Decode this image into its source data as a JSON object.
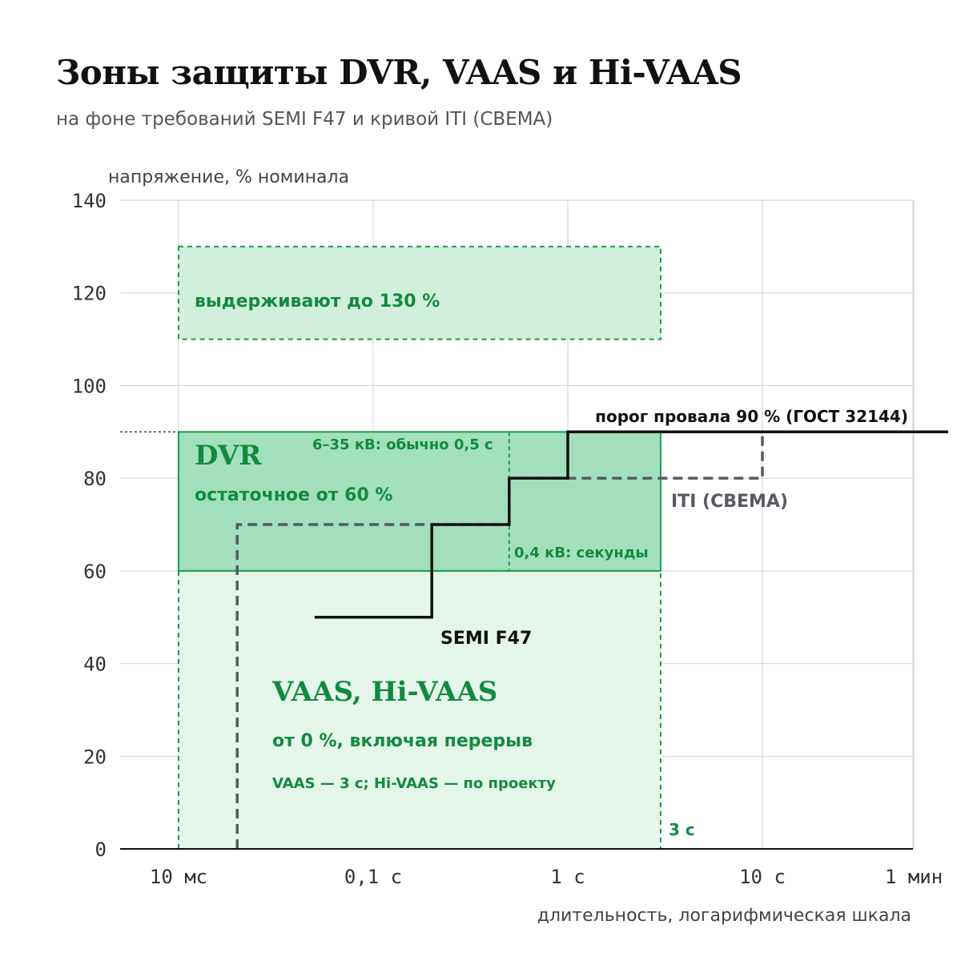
{
  "title": "Зоны защиты DVR, VAAS и Hi-VAAS",
  "subtitle": "на фоне требований SEMI F47 и кривой ITI (CBEMA)",
  "colors": {
    "green": "#1a9e4b",
    "green_text": "#138a3e",
    "zone_light": "#e4f5ea",
    "zone_mid": "#d2efdd",
    "zone_dark": "#a2e0bd",
    "semi": "#111111",
    "iti": "#555a63",
    "grid": "#d0d0d0"
  },
  "chart_data": {
    "type": "step",
    "ylabel": "напряжение, % номинала",
    "xlabel": "длительность, логарифмическая шкала",
    "x_scale": "log",
    "xlim_s": [
      0.0035,
      90
    ],
    "ylim": [
      0,
      140
    ],
    "y_ticks": [
      0,
      20,
      40,
      60,
      80,
      100,
      120,
      140
    ],
    "x_ticks": [
      {
        "value_s": 0.01,
        "label": "10 мс"
      },
      {
        "value_s": 0.1,
        "label": "0,1 с"
      },
      {
        "value_s": 1,
        "label": "1 с"
      },
      {
        "value_s": 10,
        "label": "10 с"
      },
      {
        "value_s": 60,
        "label": "1 мин"
      }
    ],
    "grid": true,
    "zones": [
      {
        "name": "overvoltage",
        "x_s": [
          0.01,
          3
        ],
        "y": [
          110,
          130
        ],
        "label": "выдерживают до 130 %"
      },
      {
        "name": "DVR",
        "x_s": [
          0.01,
          3
        ],
        "y": [
          60,
          90
        ],
        "label": "DVR",
        "sublabel": "остаточное от 60 %"
      },
      {
        "name": "VAAS, Hi-VAAS",
        "x_s": [
          0.01,
          3
        ],
        "y": [
          0,
          60
        ],
        "label": "VAAS, Hi-VAAS",
        "sublabel": "от 0 %, включая перерыв",
        "note": "VAAS — 3 с; Hi-VAAS — по проекту",
        "end_label": "3 с"
      }
    ],
    "dvr_split": {
      "x_s": 0.5,
      "label_top": "6–35 кВ: обычно 0,5 с",
      "label_bottom": "0,4 кВ: секунды"
    },
    "series": [
      {
        "name": "SEMI F47",
        "style": "solid",
        "points": [
          [
            0.05,
            50
          ],
          [
            0.2,
            50
          ],
          [
            0.2,
            70
          ],
          [
            0.5,
            70
          ],
          [
            0.5,
            80
          ],
          [
            1,
            80
          ],
          [
            1,
            90
          ],
          [
            90,
            90
          ]
        ]
      },
      {
        "name": "ITI (CBEMA)",
        "style": "dashed",
        "points": [
          [
            0.02,
            0
          ],
          [
            0.02,
            70
          ],
          [
            0.5,
            70
          ],
          [
            0.5,
            80
          ],
          [
            10,
            80
          ],
          [
            10,
            90
          ],
          [
            90,
            90
          ]
        ]
      }
    ],
    "threshold": {
      "y": 90,
      "label": "порог провала 90 % (ГОСТ 32144)"
    }
  }
}
